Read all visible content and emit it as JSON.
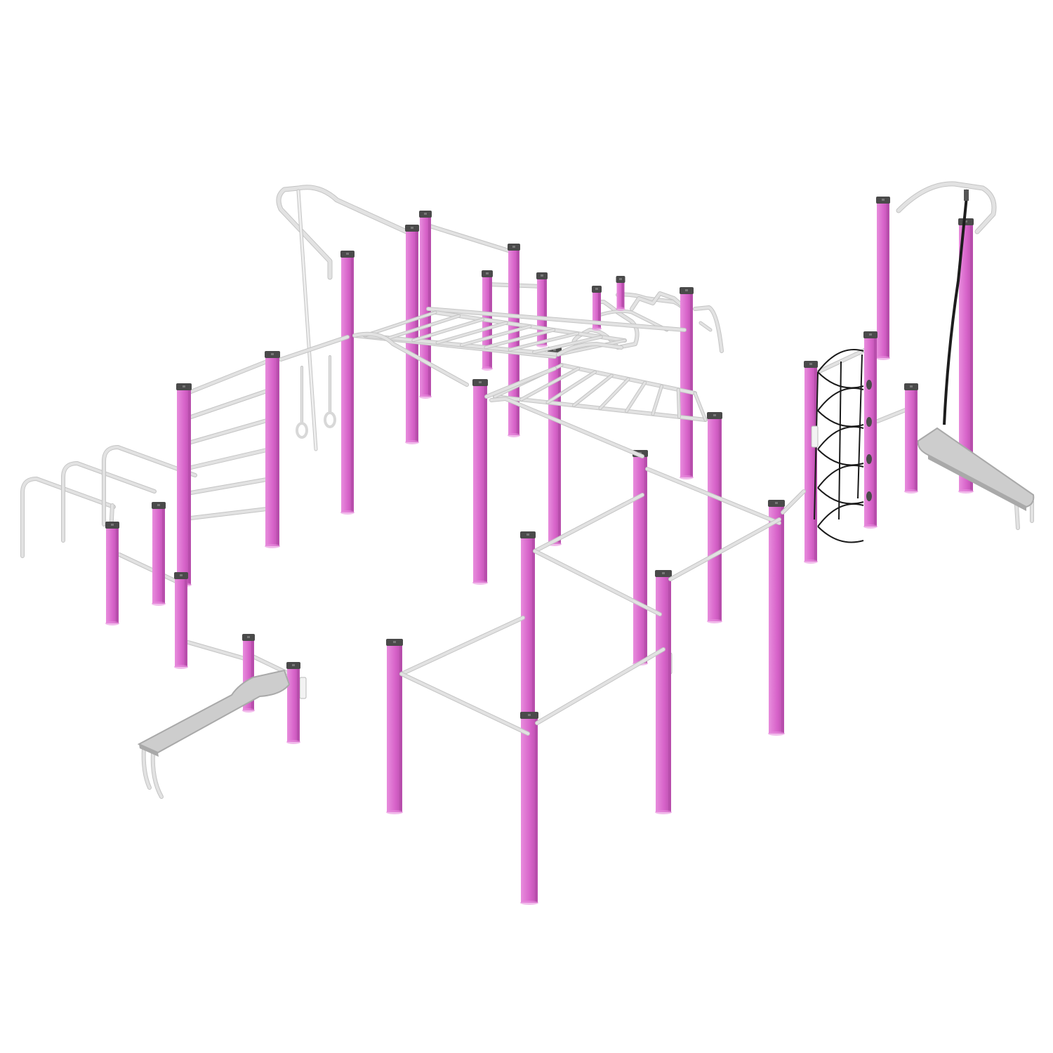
{
  "scene": {
    "subject": "outdoor-workout-calisthenics-station",
    "colors": {
      "background": "#ffffff",
      "post": "#d763c9",
      "post_shade": "#b84eac",
      "post_glow": "#e88ddd",
      "cap": "#4a4a4a",
      "bar": "#e2e2e2",
      "bar_edge": "#c4c4c4",
      "bench": "#cdcdcd",
      "bench_shade": "#a9a9a9",
      "plate": "#f3f3f3",
      "rope": "#1d1d1d",
      "net": "#1a1a1a",
      "climb_rope": "#eeeeee"
    }
  }
}
